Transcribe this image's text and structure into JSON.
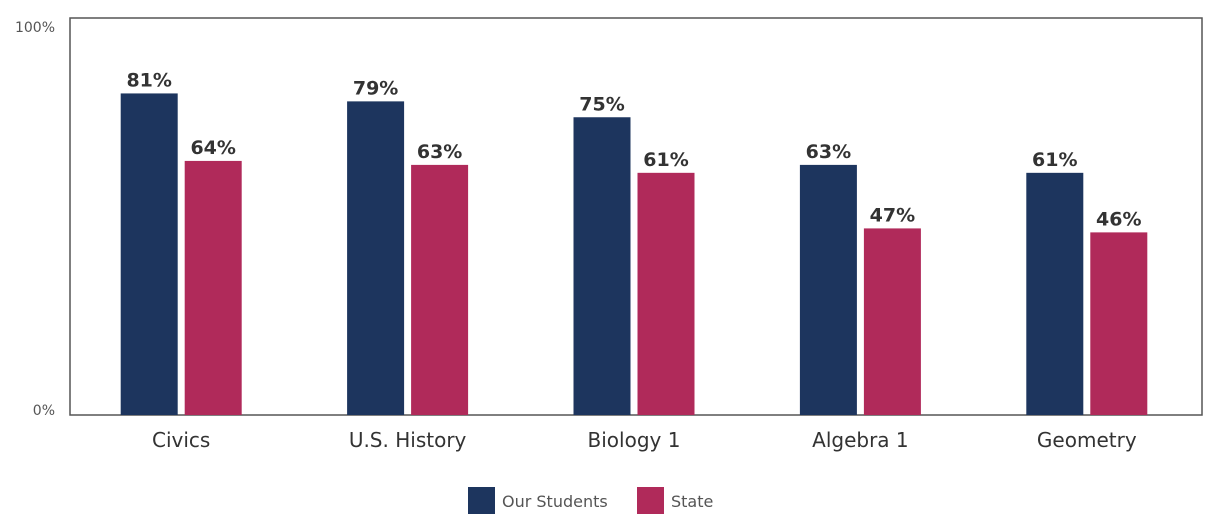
{
  "chart_data": {
    "type": "bar",
    "categories": [
      "Civics",
      "U.S. History",
      "Biology 1",
      "Algebra 1",
      "Geometry"
    ],
    "series": [
      {
        "name": "Our Students",
        "color": "#1d355e",
        "values": [
          81,
          79,
          75,
          63,
          61
        ],
        "labels": [
          "81%",
          "79%",
          "75%",
          "63%",
          "61%"
        ]
      },
      {
        "name": "State",
        "color": "#b02a5a",
        "values": [
          64,
          63,
          61,
          47,
          46
        ],
        "labels": [
          "64%",
          "63%",
          "61%",
          "47%",
          "46%"
        ]
      }
    ],
    "ylim": [
      0,
      100
    ],
    "y_ticks": [
      {
        "value": 100,
        "label": "100%"
      },
      {
        "value": 0,
        "label": "0%"
      }
    ],
    "grid": false,
    "legend_position": "bottom-center"
  }
}
